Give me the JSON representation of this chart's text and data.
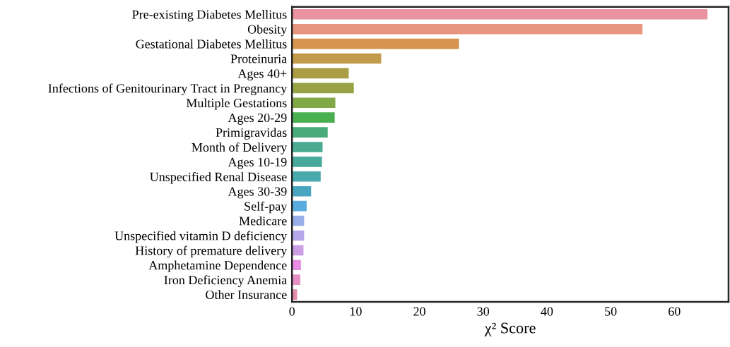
{
  "chart_data": {
    "type": "bar",
    "orientation": "horizontal",
    "xlabel": "χ² Score",
    "categories": [
      "Pre-existing Diabetes Mellitus",
      "Obesity",
      "Gestational Diabetes Mellitus",
      "Proteinuria",
      "Ages 40+",
      "Infections of Genitourinary Tract in Pregnancy",
      "Multiple Gestations",
      "Ages 20-29",
      "Primigravidas",
      "Month of Delivery",
      "Ages 10-19",
      "Unspecified Renal Disease",
      "Ages 30-39",
      "Self-pay",
      "Medicare",
      "Unspecified vitamin D deficiency",
      "History of premature delivery",
      "Amphetamine Dependence",
      "Iron Deficiency Anemia",
      "Other Insurance"
    ],
    "values": [
      65.2,
      55.0,
      26.2,
      14.0,
      8.9,
      9.7,
      6.8,
      6.7,
      5.6,
      4.8,
      4.7,
      4.5,
      3.0,
      2.3,
      1.9,
      1.9,
      1.8,
      1.4,
      1.3,
      0.8
    ],
    "colors": [
      "#e8939f",
      "#e7957f",
      "#d6944e",
      "#bf9b4b",
      "#aa9d45",
      "#99a345",
      "#80a846",
      "#4aaf50",
      "#4aab7a",
      "#4aab91",
      "#4aa99d",
      "#4aa9ad",
      "#4aa6c0",
      "#58acde",
      "#98aee8",
      "#b6a6ea",
      "#cc9ee5",
      "#e68de3",
      "#e68fc5",
      "#e48da9"
    ],
    "xlim": [
      0,
      68.5
    ],
    "xticks": [
      0,
      10,
      20,
      30,
      40,
      50,
      60
    ],
    "grid": false,
    "legend": false
  }
}
